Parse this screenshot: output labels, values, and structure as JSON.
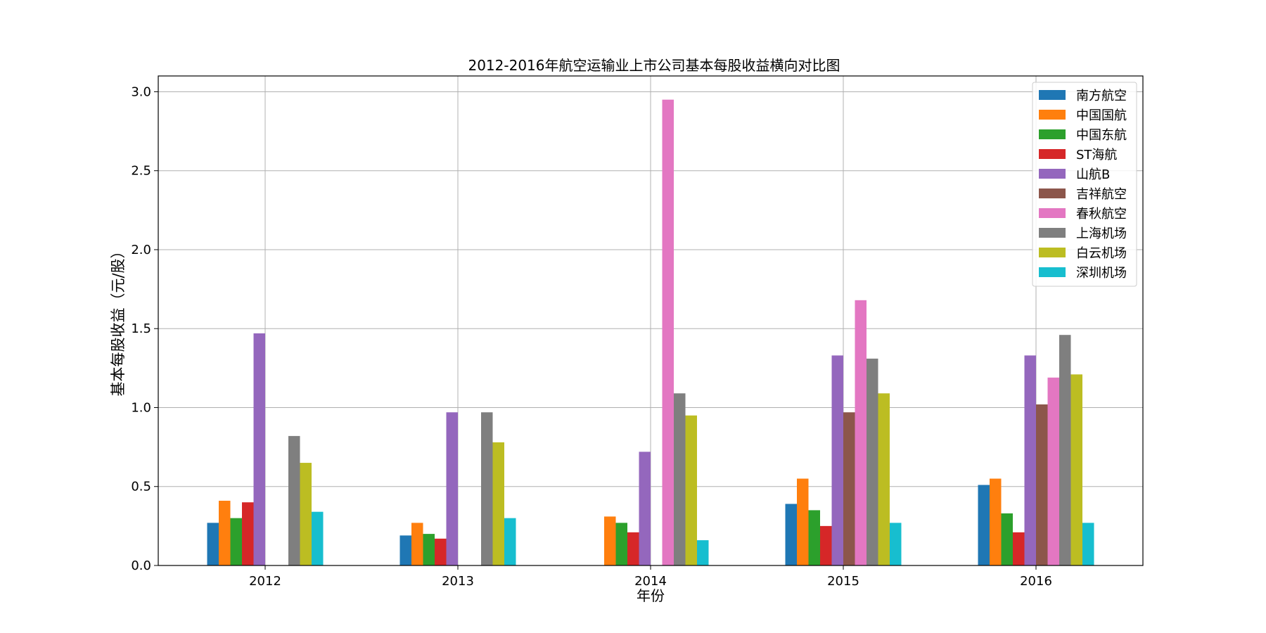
{
  "chart_data": {
    "type": "bar",
    "title": "2012-2016年航空运输业上市公司基本每股收益横向对比图",
    "xlabel": "年份",
    "ylabel": "基本每股收益（元/股）",
    "categories": [
      "2012",
      "2013",
      "2014",
      "2015",
      "2016"
    ],
    "ylim": [
      0,
      3.1
    ],
    "yticks": [
      "0.0",
      "0.5",
      "1.0",
      "1.5",
      "2.0",
      "2.5",
      "3.0"
    ],
    "grid": true,
    "legend_position": "top-right",
    "series": [
      {
        "name": "南方航空",
        "color": "#1f77b4",
        "values": [
          0.27,
          0.19,
          0,
          0.39,
          0.51
        ]
      },
      {
        "name": "中国国航",
        "color": "#ff7f0e",
        "values": [
          0.41,
          0.27,
          0.31,
          0.55,
          0.55
        ]
      },
      {
        "name": "中国东航",
        "color": "#2ca02c",
        "values": [
          0.3,
          0.2,
          0.27,
          0.35,
          0.33
        ]
      },
      {
        "name": "ST海航",
        "color": "#d62728",
        "values": [
          0.4,
          0.17,
          0.21,
          0.25,
          0.21
        ]
      },
      {
        "name": "山航B",
        "color": "#9467bd",
        "values": [
          1.47,
          0.97,
          0.72,
          1.33,
          1.33
        ]
      },
      {
        "name": "吉祥航空",
        "color": "#8c564b",
        "values": [
          0,
          0,
          0,
          0.97,
          1.02
        ]
      },
      {
        "name": "春秋航空",
        "color": "#e377c2",
        "values": [
          0,
          0,
          2.95,
          1.68,
          1.19
        ]
      },
      {
        "name": "上海机场",
        "color": "#7f7f7f",
        "values": [
          0.82,
          0.97,
          1.09,
          1.31,
          1.46
        ]
      },
      {
        "name": "白云机场",
        "color": "#bcbd22",
        "values": [
          0.65,
          0.78,
          0.95,
          1.09,
          1.21
        ]
      },
      {
        "name": "深圳机场",
        "color": "#17becf",
        "values": [
          0.34,
          0.3,
          0.16,
          0.27,
          0.27
        ]
      }
    ]
  }
}
